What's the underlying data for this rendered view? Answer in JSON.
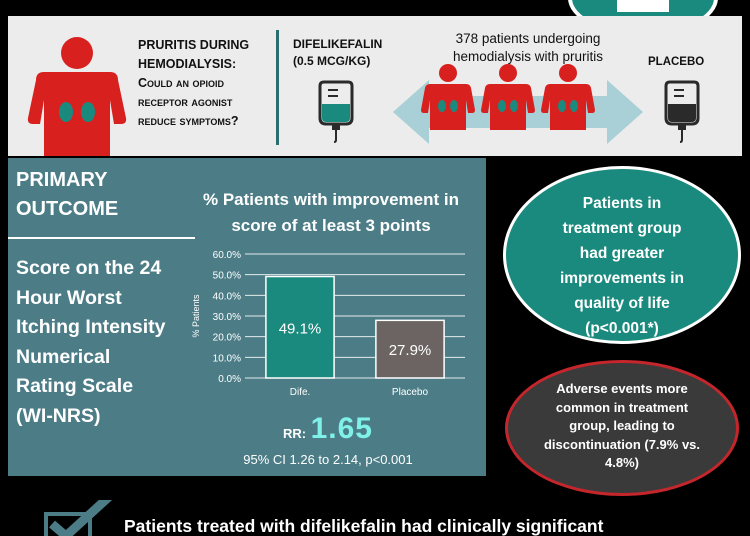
{
  "header": {
    "question_line1": "Pruritis during",
    "question_line2": "hemodialysis:",
    "question_line3": "Could an opioid",
    "question_line4": "receptor agonist",
    "question_line5": "reduce symptoms?",
    "drug_name": "Difelikefalin",
    "drug_dose": "(0.5 mcg/kg)",
    "group_caption_line1": "378 patients undergoing",
    "group_caption_line2": "hemodialysis with pruritis",
    "placebo_label": "Placebo"
  },
  "outcome": {
    "section_title_line1": "PRIMARY",
    "section_title_line2": "OUTCOME",
    "measure_line1": "Score on the 24",
    "measure_line2": "Hour Worst",
    "measure_line3": "Itching Intensity",
    "measure_line4": "Numerical",
    "measure_line5": "Rating Scale",
    "measure_line6": "(WI-NRS)",
    "rr_label": "RR:",
    "rr_value": "1.65",
    "ci_text": "95% CI 1.26 to 2.14, p<0.001"
  },
  "chart_data": {
    "type": "bar",
    "title_line1": "% Patients with improvement in",
    "title_line2": "score of at least 3 points",
    "ylabel": "% Patients",
    "categories": [
      "Dife.",
      "Placebo"
    ],
    "values": [
      49.1,
      27.9
    ],
    "value_labels": [
      "49.1%",
      "27.9%"
    ],
    "ylim": [
      0,
      60
    ],
    "yticks": [
      "0.0%",
      "10.0%",
      "20.0%",
      "30.0%",
      "40.0%",
      "50.0%",
      "60.0%"
    ],
    "colors": [
      "#1b8a7e",
      "#6b6462"
    ],
    "grid": true
  },
  "qol": {
    "line1": "Patients in",
    "line2": "treatment group",
    "line3": "had greater",
    "line4": "improvements in",
    "line5": "quality of life",
    "line6": "(p<0.001*)"
  },
  "adverse": {
    "line1": "Adverse events more",
    "line2": "common in treatment",
    "line3": "group, leading to",
    "line4": "discontinuation (7.9% vs.",
    "line5": "4.8%)"
  },
  "conclusion": {
    "text": "Patients treated with difelikefalin had clinically significant"
  },
  "icons": {
    "person": "person-kidney-icon",
    "bag": "iv-bag-icon",
    "arrow": "double-arrow-icon",
    "check": "checkmark-icon"
  },
  "colors": {
    "accent_teal": "#1b8a7e",
    "panel_slate": "#4c7d87",
    "person_red": "#d8201f",
    "kidney_teal": "#1b8a7e",
    "placebo_gray": "#6b6462",
    "rr_highlight": "#7ff1e8",
    "adverse_border": "#c4262b"
  }
}
